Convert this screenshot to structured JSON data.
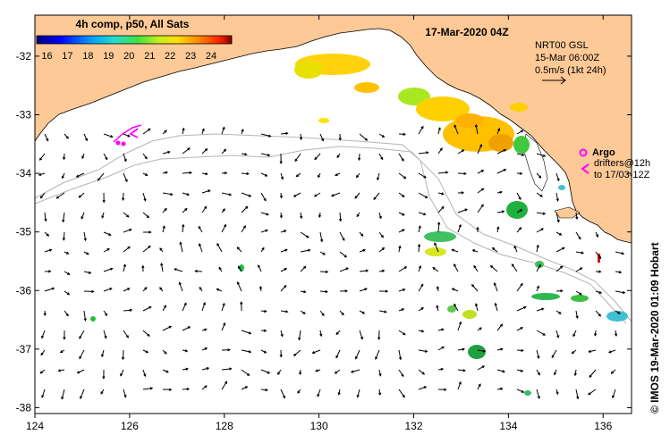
{
  "map": {
    "title": "17-Mar-2020 04Z",
    "product_label": "4h comp, p50, All Sats",
    "sst_colorbar": {
      "ticks": [
        "16",
        "17",
        "18",
        "19",
        "20",
        "21",
        "22",
        "23",
        "24"
      ],
      "min": 15.5,
      "max": 25
    },
    "current_legend": {
      "source": "NRT00 GSL",
      "time": "15-Mar 06:00Z",
      "scale": "0.5m/s (1kt 24h)"
    },
    "argo": {
      "label": "Argo",
      "drifters_line1": "drifters@12h",
      "drifters_line2": "to 17/03-12Z"
    },
    "credit": "© IMOS 19-Mar-2020 01:09 Hobart",
    "x_ticks": [
      "124",
      "126",
      "128",
      "130",
      "132",
      "134",
      "136"
    ],
    "y_ticks": [
      "-32",
      "-33",
      "-34",
      "-35",
      "-36",
      "-37",
      "-38"
    ],
    "extent": {
      "lon_min": 124,
      "lon_max": 136.6,
      "lat_min": -38.1,
      "lat_max": -31.3
    },
    "colors": {
      "land": "#fdc996",
      "ocean": "#ffffff",
      "contour": "#b4b4b4",
      "argo": "#ff00ff"
    }
  }
}
